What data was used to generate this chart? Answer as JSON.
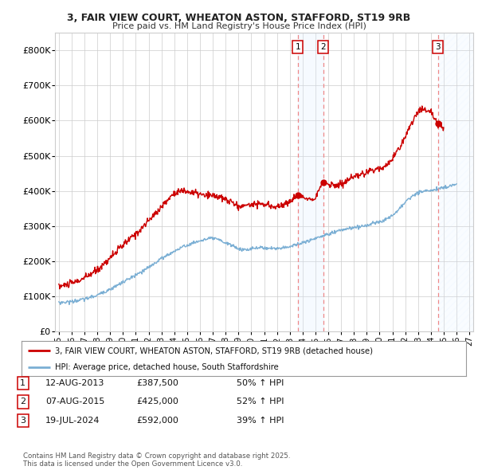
{
  "title_line1": "3, FAIR VIEW COURT, WHEATON ASTON, STAFFORD, ST19 9RB",
  "title_line2": "Price paid vs. HM Land Registry's House Price Index (HPI)",
  "ylim": [
    0,
    850000
  ],
  "yticks": [
    0,
    100000,
    200000,
    300000,
    400000,
    500000,
    600000,
    700000,
    800000
  ],
  "ytick_labels": [
    "£0",
    "£100K",
    "£200K",
    "£300K",
    "£400K",
    "£500K",
    "£600K",
    "£700K",
    "£800K"
  ],
  "xlim_start": 1994.7,
  "xlim_end": 2027.3,
  "transactions": [
    {
      "label": "1",
      "year": 2013.617,
      "price": 387500,
      "date": "12-AUG-2013",
      "pct": "50%",
      "dir": "↑"
    },
    {
      "label": "2",
      "year": 2015.6,
      "price": 425000,
      "date": "07-AUG-2015",
      "pct": "52%",
      "dir": "↑"
    },
    {
      "label": "3",
      "year": 2024.54,
      "price": 592000,
      "date": "19-JUL-2024",
      "pct": "39%",
      "dir": "↑"
    }
  ],
  "red_line_color": "#cc0000",
  "blue_line_color": "#7bafd4",
  "shaded_region_color": "#ddeeff",
  "vline_color": "#ee8888",
  "background_color": "#ffffff",
  "grid_color": "#cccccc",
  "legend_label_red": "3, FAIR VIEW COURT, WHEATON ASTON, STAFFORD, ST19 9RB (detached house)",
  "legend_label_blue": "HPI: Average price, detached house, South Staffordshire",
  "footer_text": "Contains HM Land Registry data © Crown copyright and database right 2025.\nThis data is licensed under the Open Government Licence v3.0.",
  "table_entries": [
    {
      "label": "1",
      "date": "12-AUG-2013",
      "price": "£387,500",
      "pct": "50% ↑ HPI"
    },
    {
      "label": "2",
      "date": "07-AUG-2015",
      "price": "£425,000",
      "pct": "52% ↑ HPI"
    },
    {
      "label": "3",
      "date": "19-JUL-2024",
      "price": "£592,000",
      "pct": "39% ↑ HPI"
    }
  ],
  "red_anchors_x": [
    1995.0,
    1995.5,
    1996.0,
    1996.5,
    1997.0,
    1997.5,
    1998.0,
    1998.5,
    1999.0,
    1999.5,
    2000.0,
    2000.5,
    2001.0,
    2001.5,
    2002.0,
    2002.5,
    2003.0,
    2003.5,
    2004.0,
    2004.5,
    2005.0,
    2005.5,
    2006.0,
    2006.5,
    2007.0,
    2007.5,
    2008.0,
    2008.5,
    2009.0,
    2009.5,
    2010.0,
    2010.5,
    2011.0,
    2011.5,
    2012.0,
    2012.5,
    2013.0,
    2013.617,
    2014.0,
    2014.5,
    2015.0,
    2015.6,
    2016.0,
    2016.5,
    2017.0,
    2017.5,
    2018.0,
    2018.5,
    2019.0,
    2019.5,
    2020.0,
    2020.5,
    2021.0,
    2021.5,
    2022.0,
    2022.5,
    2023.0,
    2023.5,
    2024.0,
    2024.54,
    2025.0
  ],
  "red_anchors_y": [
    128000,
    132000,
    137000,
    143000,
    152000,
    163000,
    175000,
    192000,
    210000,
    228000,
    245000,
    262000,
    278000,
    295000,
    315000,
    335000,
    355000,
    375000,
    395000,
    400000,
    398000,
    395000,
    390000,
    385000,
    388000,
    382000,
    375000,
    368000,
    355000,
    358000,
    362000,
    365000,
    360000,
    358000,
    355000,
    360000,
    370000,
    387500,
    382000,
    378000,
    382000,
    425000,
    420000,
    415000,
    418000,
    430000,
    438000,
    445000,
    452000,
    460000,
    465000,
    472000,
    490000,
    520000,
    555000,
    595000,
    625000,
    635000,
    625000,
    592000,
    578000
  ],
  "blue_anchors_x": [
    1995.0,
    1995.5,
    1996.0,
    1996.5,
    1997.0,
    1997.5,
    1998.0,
    1998.5,
    1999.0,
    1999.5,
    2000.0,
    2000.5,
    2001.0,
    2001.5,
    2002.0,
    2002.5,
    2003.0,
    2003.5,
    2004.0,
    2004.5,
    2005.0,
    2005.5,
    2006.0,
    2006.5,
    2007.0,
    2007.5,
    2008.0,
    2008.5,
    2009.0,
    2009.5,
    2010.0,
    2010.5,
    2011.0,
    2011.5,
    2012.0,
    2012.5,
    2013.0,
    2013.617,
    2014.0,
    2014.5,
    2015.0,
    2015.6,
    2016.0,
    2016.5,
    2017.0,
    2017.5,
    2018.0,
    2018.5,
    2019.0,
    2019.5,
    2020.0,
    2020.5,
    2021.0,
    2021.5,
    2022.0,
    2022.5,
    2023.0,
    2023.5,
    2024.0,
    2024.54,
    2025.0,
    2026.0
  ],
  "blue_anchors_y": [
    82000,
    83000,
    85000,
    88000,
    92000,
    97000,
    103000,
    112000,
    120000,
    130000,
    140000,
    150000,
    160000,
    170000,
    182000,
    195000,
    208000,
    218000,
    228000,
    238000,
    245000,
    252000,
    258000,
    262000,
    265000,
    260000,
    252000,
    245000,
    235000,
    232000,
    235000,
    238000,
    238000,
    237000,
    236000,
    238000,
    242000,
    248000,
    252000,
    258000,
    265000,
    272000,
    278000,
    283000,
    288000,
    292000,
    295000,
    298000,
    302000,
    308000,
    312000,
    318000,
    330000,
    348000,
    368000,
    385000,
    395000,
    400000,
    402000,
    405000,
    410000,
    420000
  ]
}
